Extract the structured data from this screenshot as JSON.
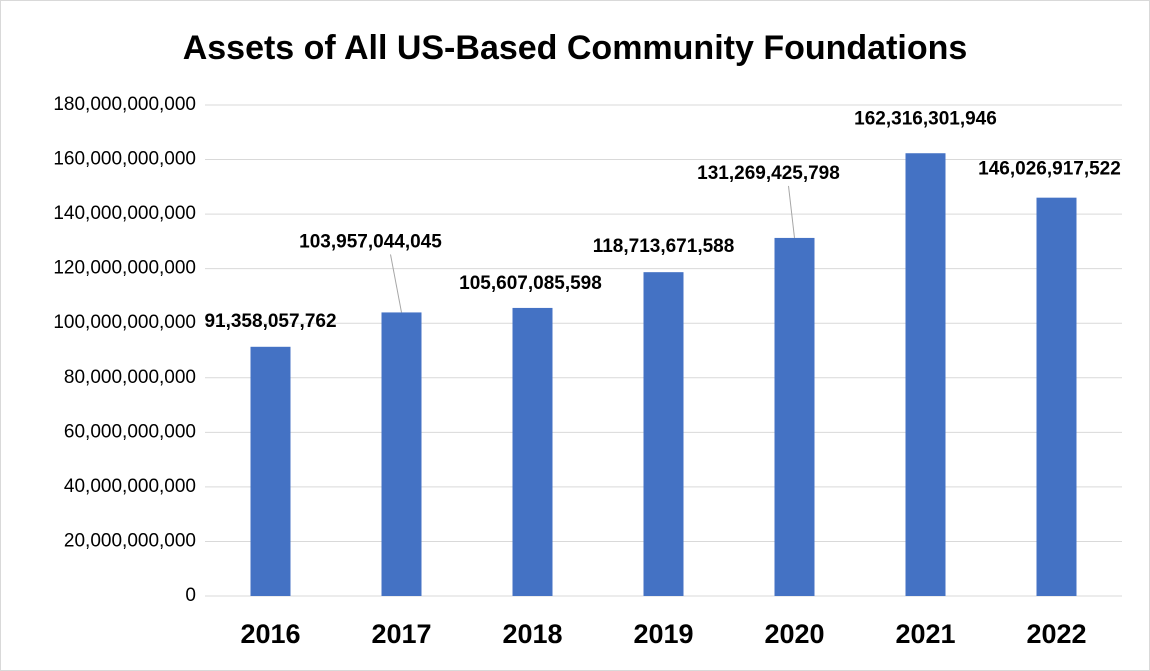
{
  "chart_data": {
    "type": "bar",
    "title": "Assets of All US-Based Community Foundations",
    "categories": [
      "2016",
      "2017",
      "2018",
      "2019",
      "2020",
      "2021",
      "2022"
    ],
    "values": [
      91358057762,
      103957044045,
      105607085598,
      118713671588,
      131269425798,
      162316301946,
      146026917522
    ],
    "value_labels": [
      "91,358,057,762",
      "103,957,044,045",
      "105,607,085,598",
      "118,713,671,588",
      "131,269,425,798",
      "162,316,301,946",
      "146,026,917,522"
    ],
    "color": "#4472c4",
    "ylim": [
      0,
      180000000000
    ],
    "yticks": [
      0,
      {
        "value": 20000000000,
        "label": "20,000,000,000"
      },
      {
        "value": 40000000000,
        "label": "40,000,000,000"
      },
      {
        "value": 60000000000,
        "label": "60,000,000,000"
      },
      {
        "value": 80000000000,
        "label": "80,000,000,000"
      },
      {
        "value": 100000000000,
        "label": "100,000,000,000"
      },
      {
        "value": 120000000000,
        "label": "120,000,000,000"
      },
      {
        "value": 140000000000,
        "label": "140,000,000,000"
      },
      {
        "value": 160000000000,
        "label": "160,000,000,000"
      },
      {
        "value": 180000000000,
        "label": "180,000,000,000"
      }
    ],
    "grid": true
  }
}
